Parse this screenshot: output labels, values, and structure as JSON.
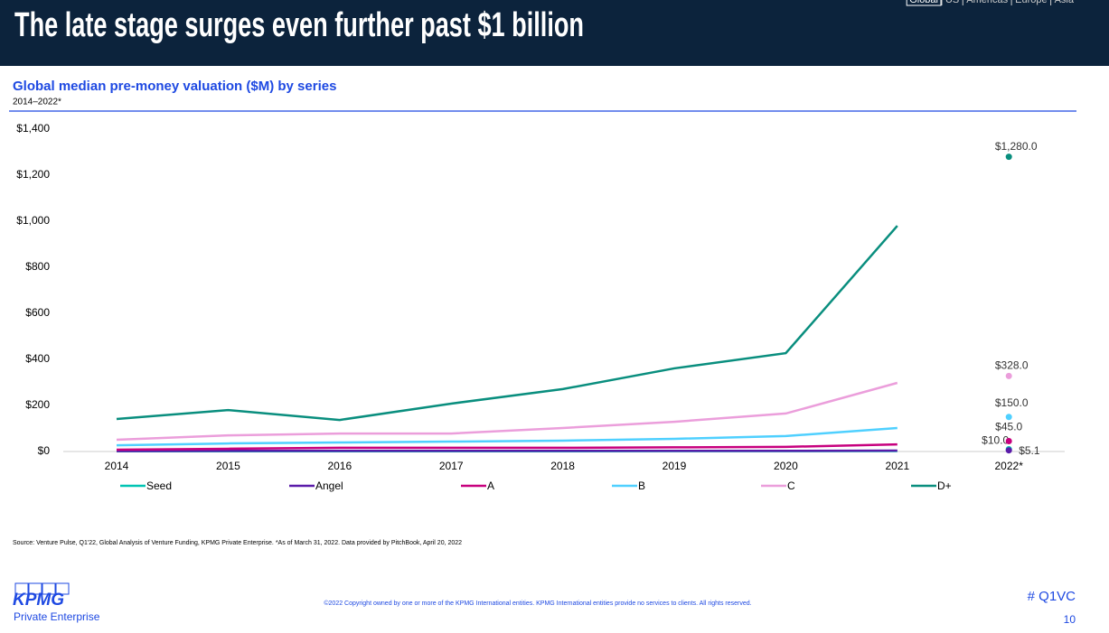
{
  "header": {
    "title": "The late stage surges even further past $1 billion",
    "nav": [
      "Global",
      "US",
      "Americas",
      "Europe",
      "Asia"
    ]
  },
  "chart_data": {
    "type": "line",
    "title": "Global median pre-money valuation ($M) by series",
    "subtitle": "2014–2022*",
    "categories": [
      "2014",
      "2015",
      "2016",
      "2017",
      "2018",
      "2019",
      "2020",
      "2021",
      "2022*"
    ],
    "series": [
      {
        "name": "Seed",
        "color": "#00c4b3",
        "values": [
          1,
          1,
          1,
          1,
          1,
          1.5,
          1.5,
          2,
          10.0
        ],
        "value_labels": [
          null,
          null,
          null,
          null,
          null,
          null,
          null,
          null,
          "$10.0"
        ]
      },
      {
        "name": "Angel",
        "color": "#5a1ba9",
        "values": [
          2,
          3,
          3,
          3,
          3,
          3,
          3,
          4,
          5.1
        ],
        "value_labels": [
          null,
          null,
          null,
          null,
          null,
          null,
          null,
          null,
          "$5.1"
        ]
      },
      {
        "name": "A",
        "color": "#c7007e",
        "values": [
          8,
          12,
          16,
          16,
          16,
          18,
          20,
          31,
          45.0
        ],
        "value_labels": [
          null,
          null,
          null,
          null,
          null,
          null,
          null,
          null,
          "$45.0"
        ]
      },
      {
        "name": "B",
        "color": "#4fd0ff",
        "values": [
          27,
          35,
          39,
          43,
          47,
          55,
          67,
          102,
          150.0
        ],
        "value_labels": [
          null,
          null,
          null,
          null,
          null,
          null,
          null,
          null,
          "$150.0"
        ]
      },
      {
        "name": "C",
        "color": "#eb9edb",
        "values": [
          51,
          70,
          78,
          78,
          102,
          129,
          165,
          298,
          328.0
        ],
        "value_labels": [
          null,
          null,
          null,
          null,
          null,
          null,
          null,
          null,
          "$328.0"
        ]
      },
      {
        "name": "D+",
        "color": "#098e7e",
        "values": [
          141,
          180,
          137,
          208,
          271,
          361,
          427,
          980,
          1280.0
        ],
        "value_labels": [
          null,
          null,
          null,
          null,
          null,
          null,
          null,
          null,
          "$1,280.0"
        ]
      }
    ],
    "ylim": [
      0,
      1400
    ],
    "yticks": [
      {
        "value": 0,
        "label": "$0"
      },
      {
        "value": 200,
        "label": "$200"
      },
      {
        "value": 400,
        "label": "$400"
      },
      {
        "value": 600,
        "label": "$600"
      },
      {
        "value": 800,
        "label": "$800"
      },
      {
        "value": 1000,
        "label": "$1,000"
      },
      {
        "value": 1200,
        "label": "$1,200"
      },
      {
        "value": 1400,
        "label": "$1,400"
      }
    ],
    "grid": false,
    "legend": "bottom"
  },
  "footer": {
    "source": "Source: Venture Pulse, Q1'22, Global Analysis of Venture Funding, KPMG Private Enterprise. *As of March 31, 2022. Data provided by PitchBook, April 20, 2022",
    "logo": "KPMG",
    "brand": "Private Enterprise",
    "copyright": "©2022 Copyright owned by one or more of the KPMG International entities. KPMG International entities provide no services to clients. All rights reserved.",
    "hashtag": "# Q1VC",
    "page": "10"
  }
}
